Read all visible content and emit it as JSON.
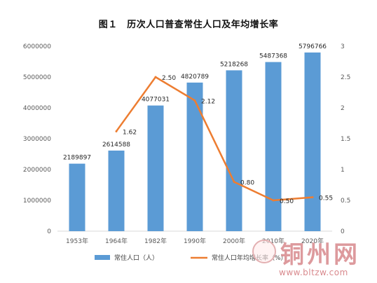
{
  "chart_data": {
    "type": "bar",
    "title": "图１　历次人口普查常住人口及年均增长率",
    "categories": [
      "1953年",
      "1964年",
      "1982年",
      "1990年",
      "2000年",
      "2010年",
      "2020年"
    ],
    "series": [
      {
        "name": "常住人口（人）",
        "type": "bar",
        "axis": "left",
        "color": "#5b9bd5",
        "values": [
          2189897,
          2614588,
          4077031,
          4820789,
          5218268,
          5487368,
          5796766
        ],
        "labels": [
          "2189897",
          "2614588",
          "4077031",
          "4820789",
          "5218268",
          "5487368",
          "5796766"
        ]
      },
      {
        "name": "常住人口年均增长率（%）",
        "type": "line",
        "axis": "right",
        "color": "#ed7d31",
        "values": [
          null,
          1.62,
          2.5,
          2.12,
          0.8,
          0.5,
          0.55
        ],
        "labels": [
          "",
          "1.62",
          "2.50",
          "2.12",
          "0.80",
          "0.50",
          "0.55"
        ]
      }
    ],
    "y_left": {
      "ylim": [
        0,
        6000000
      ],
      "ticks": [
        0,
        1000000,
        2000000,
        3000000,
        4000000,
        5000000,
        6000000
      ],
      "tick_labels": [
        "0",
        "1000000",
        "2000000",
        "3000000",
        "4000000",
        "5000000",
        "6000000"
      ]
    },
    "y_right": {
      "ylim": [
        0,
        3
      ],
      "ticks": [
        0,
        0.5,
        1,
        1.5,
        2,
        2.5,
        3
      ],
      "tick_labels": [
        "0",
        "0.5",
        "1",
        "1.5",
        "2",
        "2.5",
        "3"
      ]
    },
    "grid": false,
    "legend_position": "bottom"
  },
  "watermark": {
    "name": "铜州网",
    "url": "www.bltzw.com"
  }
}
